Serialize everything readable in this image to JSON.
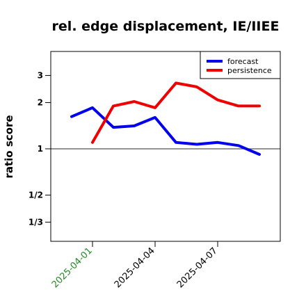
{
  "chart_data": {
    "type": "line",
    "title": "rel. edge displacement, IE/IIEE",
    "ylabel": "ratio score",
    "xlabel": "",
    "y_scale": "log",
    "ylim": [
      0.25,
      4.3
    ],
    "y_ticks": [
      {
        "value": 0.3333,
        "label": "1/3"
      },
      {
        "value": 0.5,
        "label": "1/2"
      },
      {
        "value": 1,
        "label": "1"
      },
      {
        "value": 2,
        "label": "2"
      },
      {
        "value": 3,
        "label": "3"
      }
    ],
    "reference_line": 1,
    "x": [
      "2025-03-31",
      "2025-04-01",
      "2025-04-02",
      "2025-04-03",
      "2025-04-04",
      "2025-04-05",
      "2025-04-06",
      "2025-04-07",
      "2025-04-08",
      "2025-04-09"
    ],
    "x_ticks": [
      {
        "value": "2025-04-01",
        "label": "2025-04-01",
        "color": "#228b22"
      },
      {
        "value": "2025-04-04",
        "label": "2025-04-04",
        "color": "#000000"
      },
      {
        "value": "2025-04-07",
        "label": "2025-04-07",
        "color": "#000000"
      }
    ],
    "xlim": [
      "2025-03-30",
      "2025-04-10"
    ],
    "series": [
      {
        "name": "forecast",
        "color": "#0000ee",
        "values": [
          1.62,
          1.85,
          1.38,
          1.41,
          1.6,
          1.1,
          1.07,
          1.1,
          1.05,
          0.92
        ]
      },
      {
        "name": "persistence",
        "color": "#ee0000",
        "values": [
          null,
          1.1,
          1.9,
          2.03,
          1.85,
          2.68,
          2.53,
          2.08,
          1.9,
          1.9
        ]
      }
    ],
    "legend_position": "top-right",
    "grid": false
  }
}
